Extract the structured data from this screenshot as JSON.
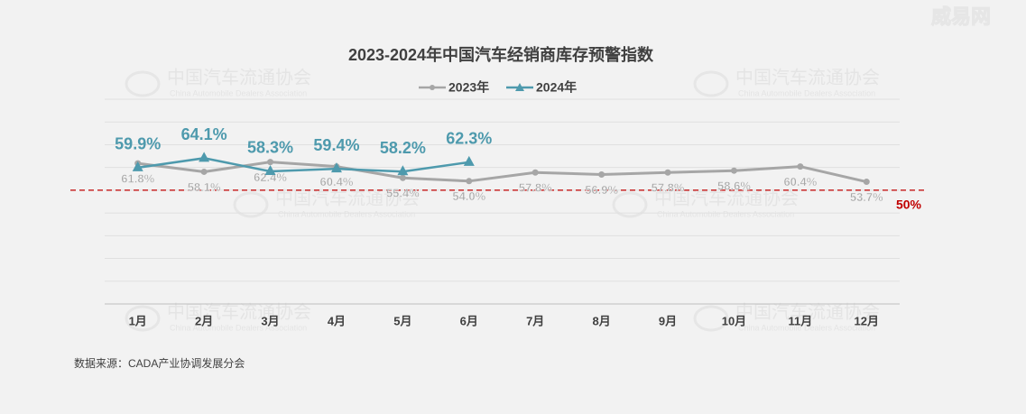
{
  "chart_data": {
    "type": "line",
    "title": "2023-2024年中国汽车经销商库存预警指数",
    "categories": [
      "1月",
      "2月",
      "3月",
      "4月",
      "5月",
      "6月",
      "7月",
      "8月",
      "9月",
      "10月",
      "11月",
      "12月"
    ],
    "series": [
      {
        "name": "2023年",
        "color": "#a6a6a6",
        "marker": "circle",
        "values": [
          61.8,
          58.1,
          62.4,
          60.4,
          55.4,
          54.0,
          57.8,
          56.9,
          57.8,
          58.6,
          60.4,
          53.7
        ],
        "value_labels": [
          "61.8%",
          "58.1%",
          "62.4%",
          "60.4%",
          "55.4%",
          "54.0%",
          "57.8%",
          "56.9%",
          "57.8%",
          "58.6%",
          "60.4%",
          "53.7%"
        ]
      },
      {
        "name": "2024年",
        "color": "#4e9aad",
        "marker": "triangle",
        "values": [
          59.9,
          64.1,
          58.3,
          59.4,
          58.2,
          62.3,
          null,
          null,
          null,
          null,
          null,
          null
        ],
        "value_labels": [
          "59.9%",
          "64.1%",
          "58.3%",
          "59.4%",
          "58.2%",
          "62.3%",
          null,
          null,
          null,
          null,
          null,
          null
        ]
      }
    ],
    "ylim": [
      0,
      90
    ],
    "yticks": [
      0,
      10,
      20,
      30,
      40,
      50,
      60,
      70,
      80,
      90
    ],
    "grid": true,
    "legend": "top",
    "reference_line": {
      "value": 50,
      "label": "50%",
      "color": "#c00000"
    },
    "watermark": "中国汽车流通协会",
    "watermark_sub": "China Automobile Dealers Association",
    "logo": "威易网",
    "source": "数据来源：CADA产业协调发展分会"
  }
}
